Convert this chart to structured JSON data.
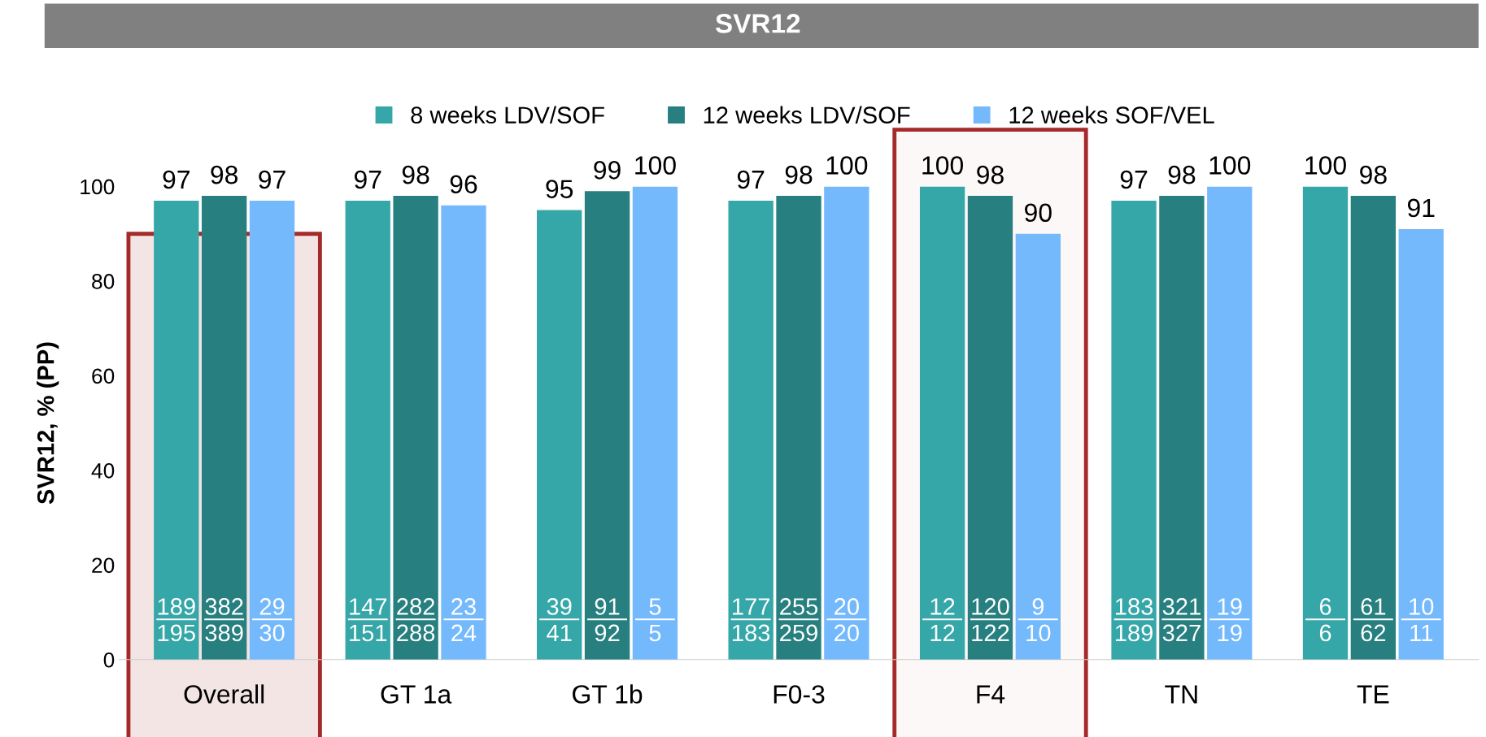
{
  "chart_data": {
    "type": "bar",
    "title": "SVR12",
    "ylabel": "SVR12, % (PP)",
    "categories": [
      "Overall",
      "GT 1a",
      "GT 1b",
      "F0-3",
      "F4",
      "TN",
      "TE"
    ],
    "series": [
      {
        "name": "8 weeks LDV/SOF",
        "color": "#36a7a8",
        "values": [
          97,
          97,
          95,
          97,
          100,
          97,
          100
        ]
      },
      {
        "name": "12 weeks LDV/SOF",
        "color": "#277f7f",
        "values": [
          98,
          98,
          99,
          98,
          98,
          98,
          98
        ]
      },
      {
        "name": "12 weeks SOF/VEL",
        "color": "#75b9fd",
        "values": [
          97,
          96,
          100,
          100,
          90,
          100,
          91
        ]
      }
    ],
    "data_labels": true,
    "ylim": [
      0,
      100
    ],
    "yticks": [
      0,
      20,
      40,
      60,
      80,
      100
    ],
    "grid": false,
    "legend": "top",
    "bands": [
      {
        "axis": "x",
        "from": "Overall",
        "to": "Overall",
        "color": "#a52a2a"
      },
      {
        "axis": "x",
        "from": "F4",
        "to": "F4",
        "color": "#a52a2a"
      }
    ],
    "annotations": [
      "189\n195",
      "382\n389",
      "29\n30",
      "147\n151",
      "282\n288",
      "23\n24",
      "39\n41",
      "91\n92",
      "5\n5",
      "177\n183",
      "255\n259",
      "20\n20",
      "12\n12",
      "120\n122",
      "9\n10",
      "183\n189",
      "321\n327",
      "19\n19",
      "6\n6",
      "61\n62",
      "10\n11"
    ]
  }
}
